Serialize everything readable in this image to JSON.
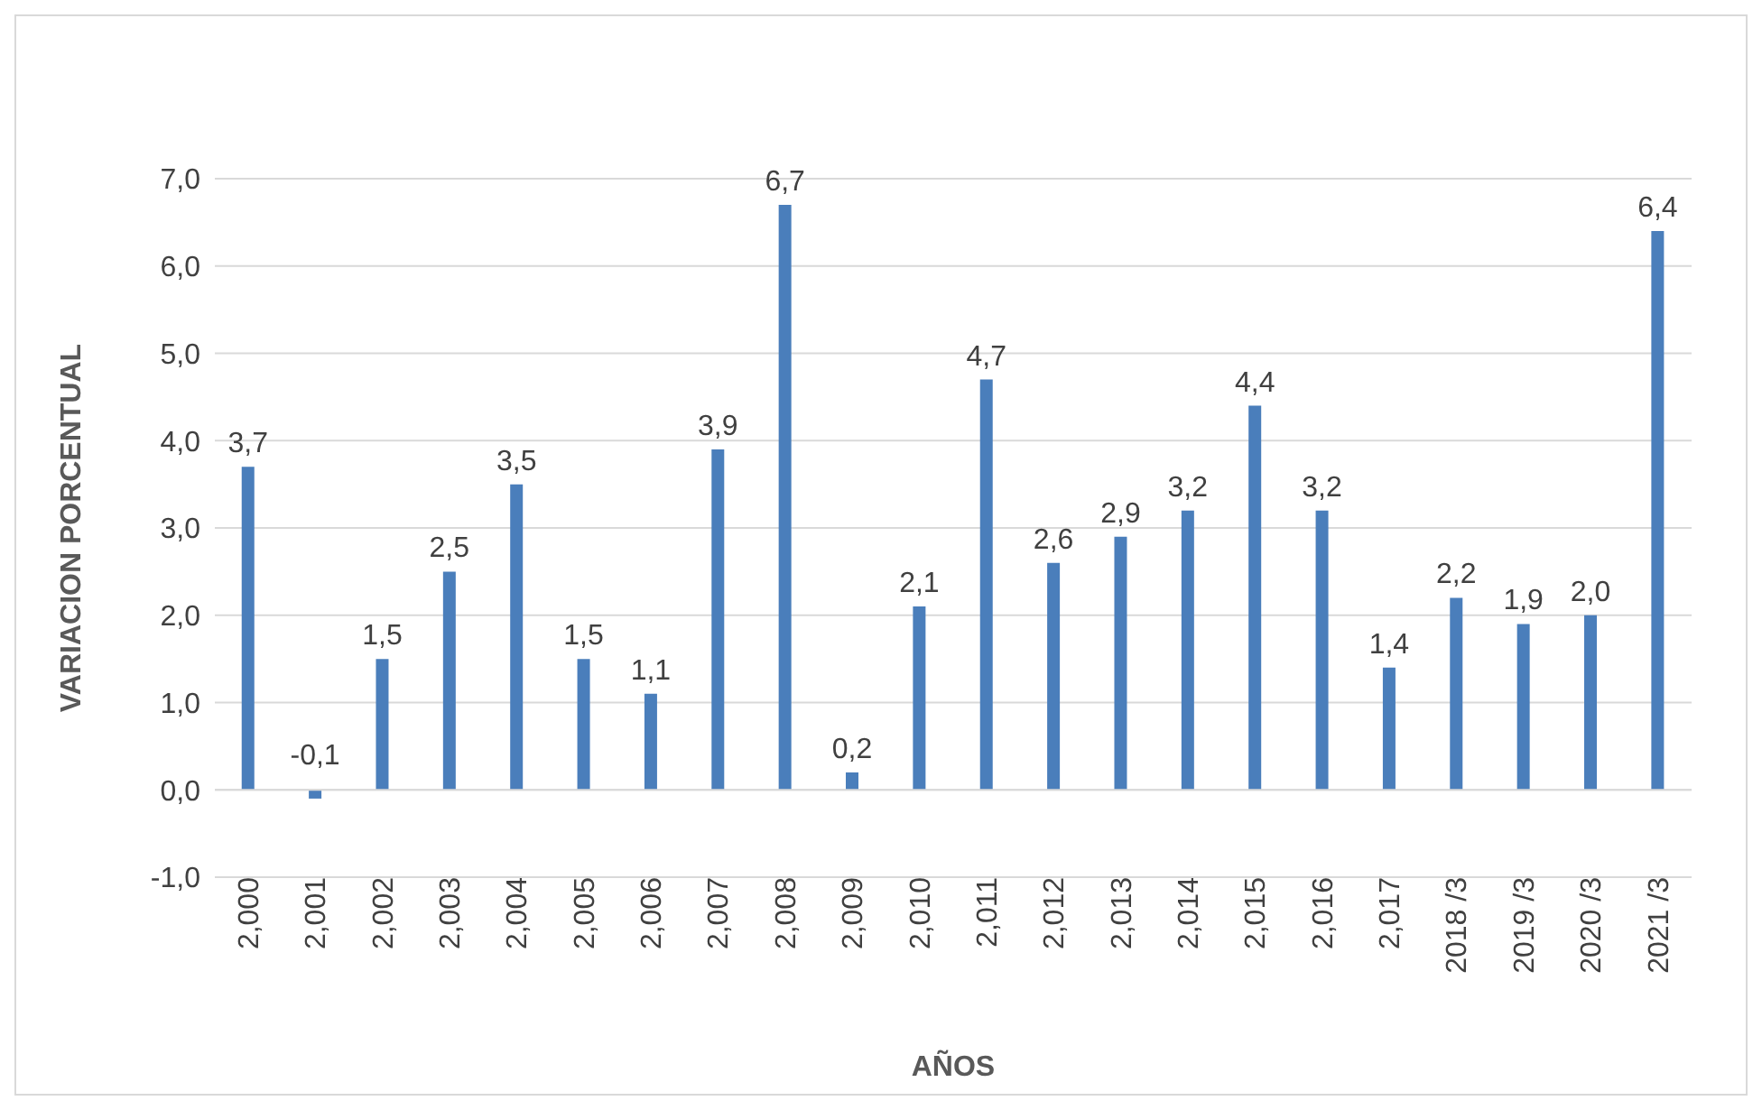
{
  "chart_data": {
    "type": "bar",
    "xlabel": "AÑOS",
    "ylabel": "VARIACION PORCENTUAL",
    "categories": [
      "2,000",
      "2,001",
      "2,002",
      "2,003",
      "2,004",
      "2,005",
      "2,006",
      "2,007",
      "2,008",
      "2,009",
      "2,010",
      "2,011",
      "2,012",
      "2,013",
      "2,014",
      "2,015",
      "2,016",
      "2,017",
      "2018 /3",
      "2019 /3",
      "2020 /3",
      "2021 /3"
    ],
    "values": [
      3.7,
      -0.1,
      1.5,
      2.5,
      3.5,
      1.5,
      1.1,
      3.9,
      6.7,
      0.2,
      2.1,
      4.7,
      2.6,
      2.9,
      3.2,
      4.4,
      3.2,
      1.4,
      2.2,
      1.9,
      2.0,
      6.4
    ],
    "value_labels": [
      "3,7",
      "-0,1",
      "1,5",
      "2,5",
      "3,5",
      "1,5",
      "1,1",
      "3,9",
      "6,7",
      "0,2",
      "2,1",
      "4,7",
      "2,6",
      "2,9",
      "3,2",
      "4,4",
      "3,2",
      "1,4",
      "2,2",
      "1,9",
      "2,0",
      "6,4"
    ],
    "color": "#4a7ebb",
    "ylim": [
      -1,
      7
    ],
    "yticks": [
      {
        "value": -1,
        "label": "-1,0"
      },
      {
        "value": 0,
        "label": "0,0"
      },
      {
        "value": 1,
        "label": "1,0"
      },
      {
        "value": 2,
        "label": "2,0"
      },
      {
        "value": 3,
        "label": "3,0"
      },
      {
        "value": 4,
        "label": "4,0"
      },
      {
        "value": 5,
        "label": "5,0"
      },
      {
        "value": 6,
        "label": "6,0"
      },
      {
        "value": 7,
        "label": "7,0"
      }
    ],
    "grid": "y"
  }
}
